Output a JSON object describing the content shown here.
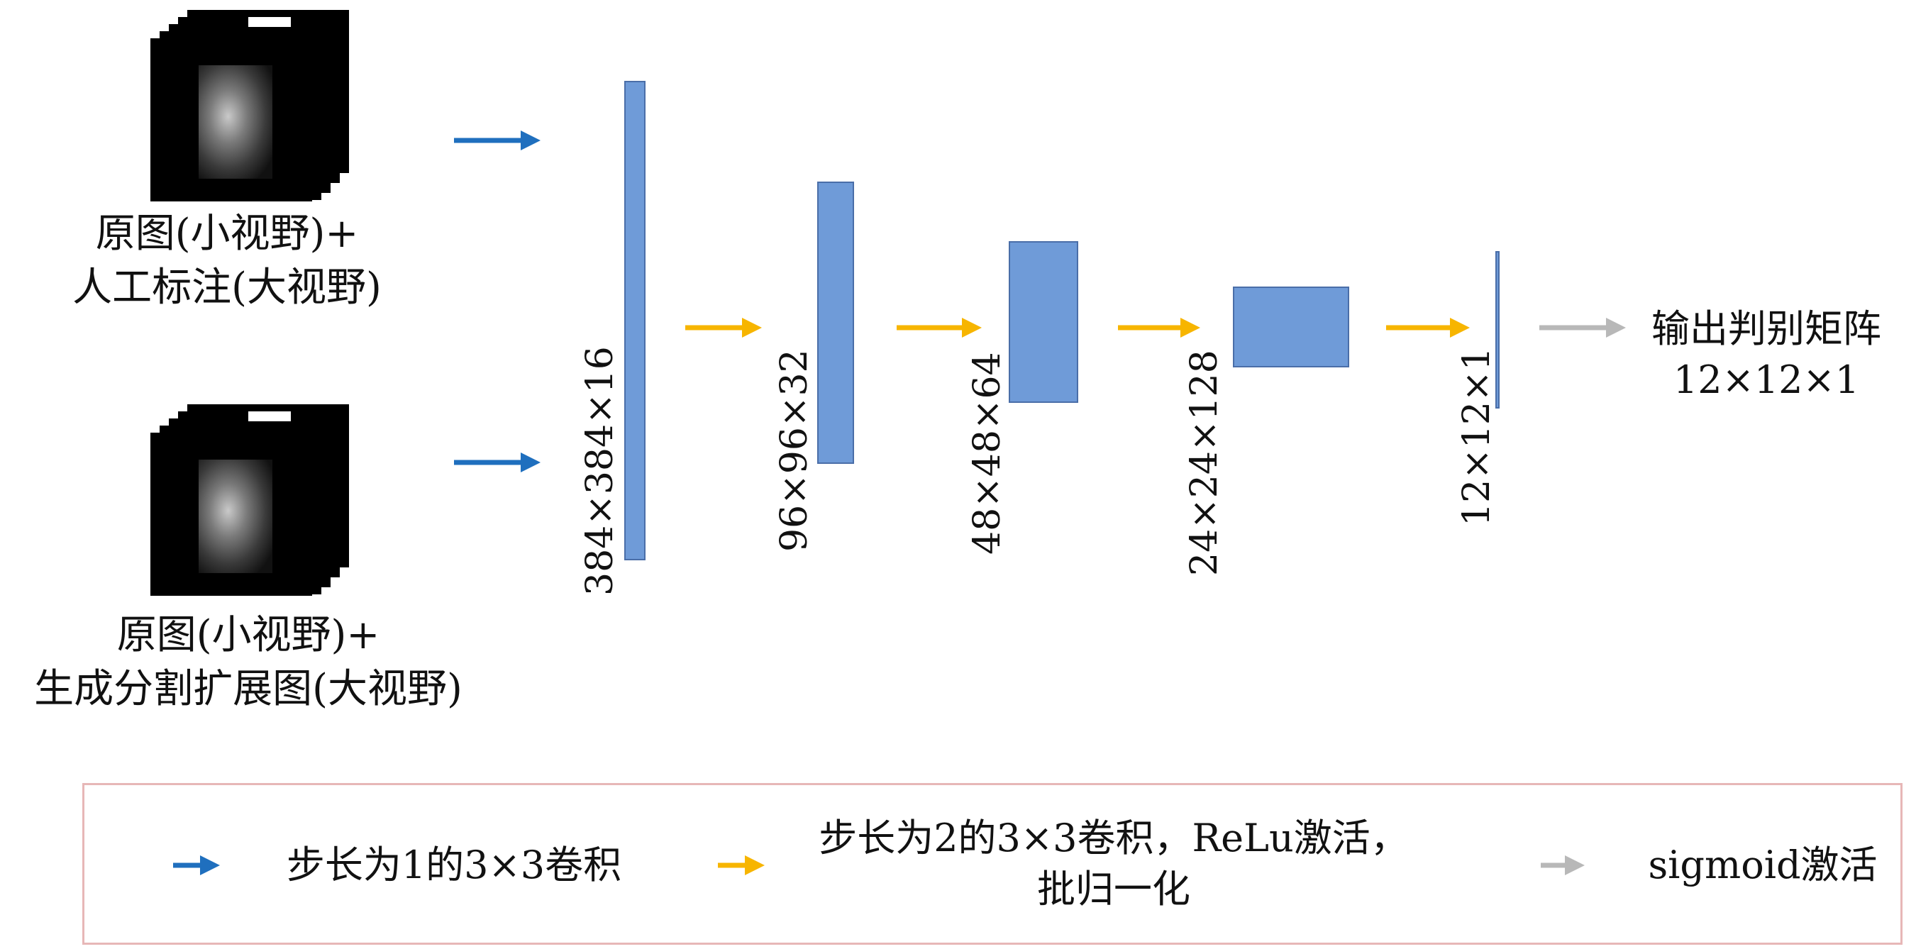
{
  "inputs": [
    {
      "line1": "原图(小视野)+",
      "line2": "人工标注(大视野)"
    },
    {
      "line1": "原图(小视野)+",
      "line2": "生成分割扩展图(大视野)"
    }
  ],
  "layers": [
    {
      "label": "384×384×16"
    },
    {
      "label": "96×96×32"
    },
    {
      "label": "48×48×64"
    },
    {
      "label": "24×24×128"
    },
    {
      "label": "12×12×1"
    }
  ],
  "output": {
    "line1": "输出判别矩阵",
    "line2": "12×12×1"
  },
  "legend": {
    "item1": "步长为1的3×3卷积",
    "item2_line1": "步长为2的3×3卷积，ReLu激活，",
    "item2_line2": "批归一化",
    "item3": "sigmoid激活"
  },
  "colors": {
    "blue_arrow": "#1f6fbe",
    "yellow_arrow": "#f7b500",
    "gray_arrow": "#b8b8b8",
    "block_fill": "#6f9bd8",
    "legend_border": "#e7b7b7"
  },
  "icons": [
    "mri-image-stack-icon",
    "arrow-right-icon"
  ]
}
